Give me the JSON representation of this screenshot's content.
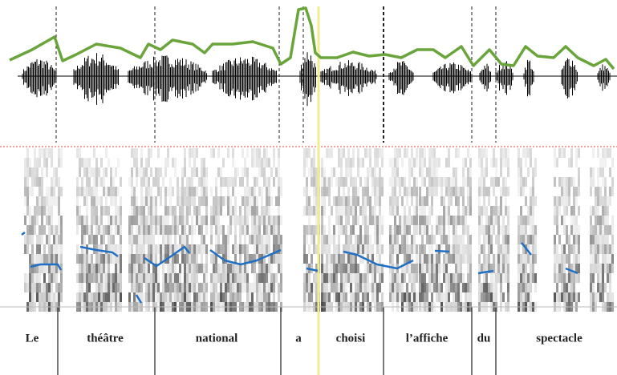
{
  "words": [
    "Le",
    "théâtre",
    "national",
    "a",
    "choisi",
    "l’affiche",
    "du",
    "spectacle"
  ]
}
